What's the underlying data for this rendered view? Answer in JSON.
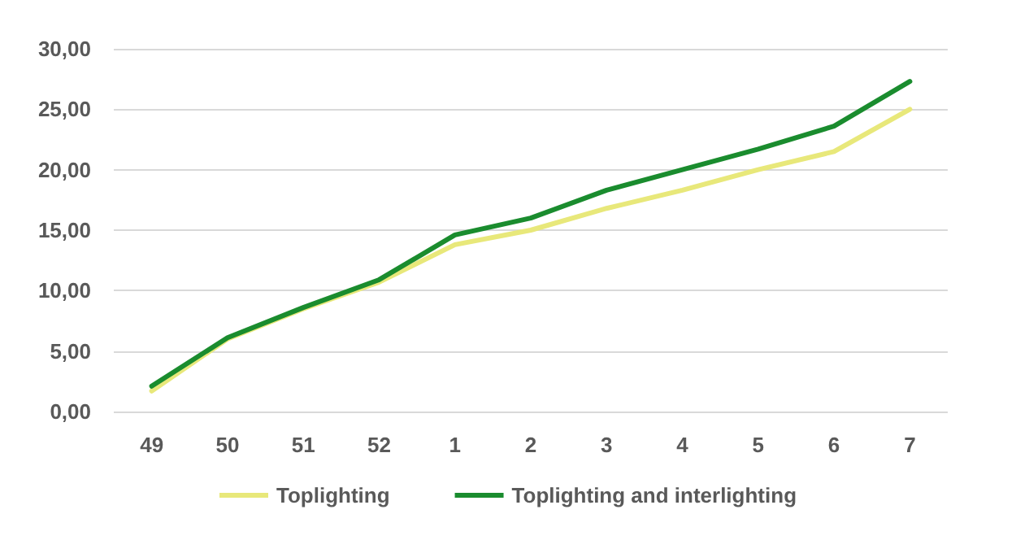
{
  "chart_data": {
    "type": "line",
    "categories": [
      "49",
      "50",
      "51",
      "52",
      "1",
      "2",
      "3",
      "4",
      "5",
      "6",
      "7"
    ],
    "series": [
      {
        "name": "Toplighting",
        "color": "#e8e87a",
        "values": [
          1.7,
          6.0,
          8.5,
          10.7,
          13.8,
          15.0,
          16.8,
          18.3,
          20.0,
          21.5,
          25.0
        ]
      },
      {
        "name": "Toplighting and interlighting",
        "color": "#1a8c2e",
        "values": [
          2.1,
          6.1,
          8.6,
          10.9,
          14.6,
          16.0,
          18.3,
          20.0,
          21.7,
          23.6,
          27.3
        ]
      }
    ],
    "ylim": [
      0,
      30
    ],
    "yticks": [
      {
        "value": 0,
        "label": "0,00"
      },
      {
        "value": 5,
        "label": "5,00"
      },
      {
        "value": 10,
        "label": "10,00"
      },
      {
        "value": 15,
        "label": "15,00"
      },
      {
        "value": 20,
        "label": "20,00"
      },
      {
        "value": 25,
        "label": "25,00"
      },
      {
        "value": 30,
        "label": "30,00"
      }
    ],
    "grid": "y",
    "legend": "bottom",
    "marker": "none",
    "line_style": "solid"
  }
}
